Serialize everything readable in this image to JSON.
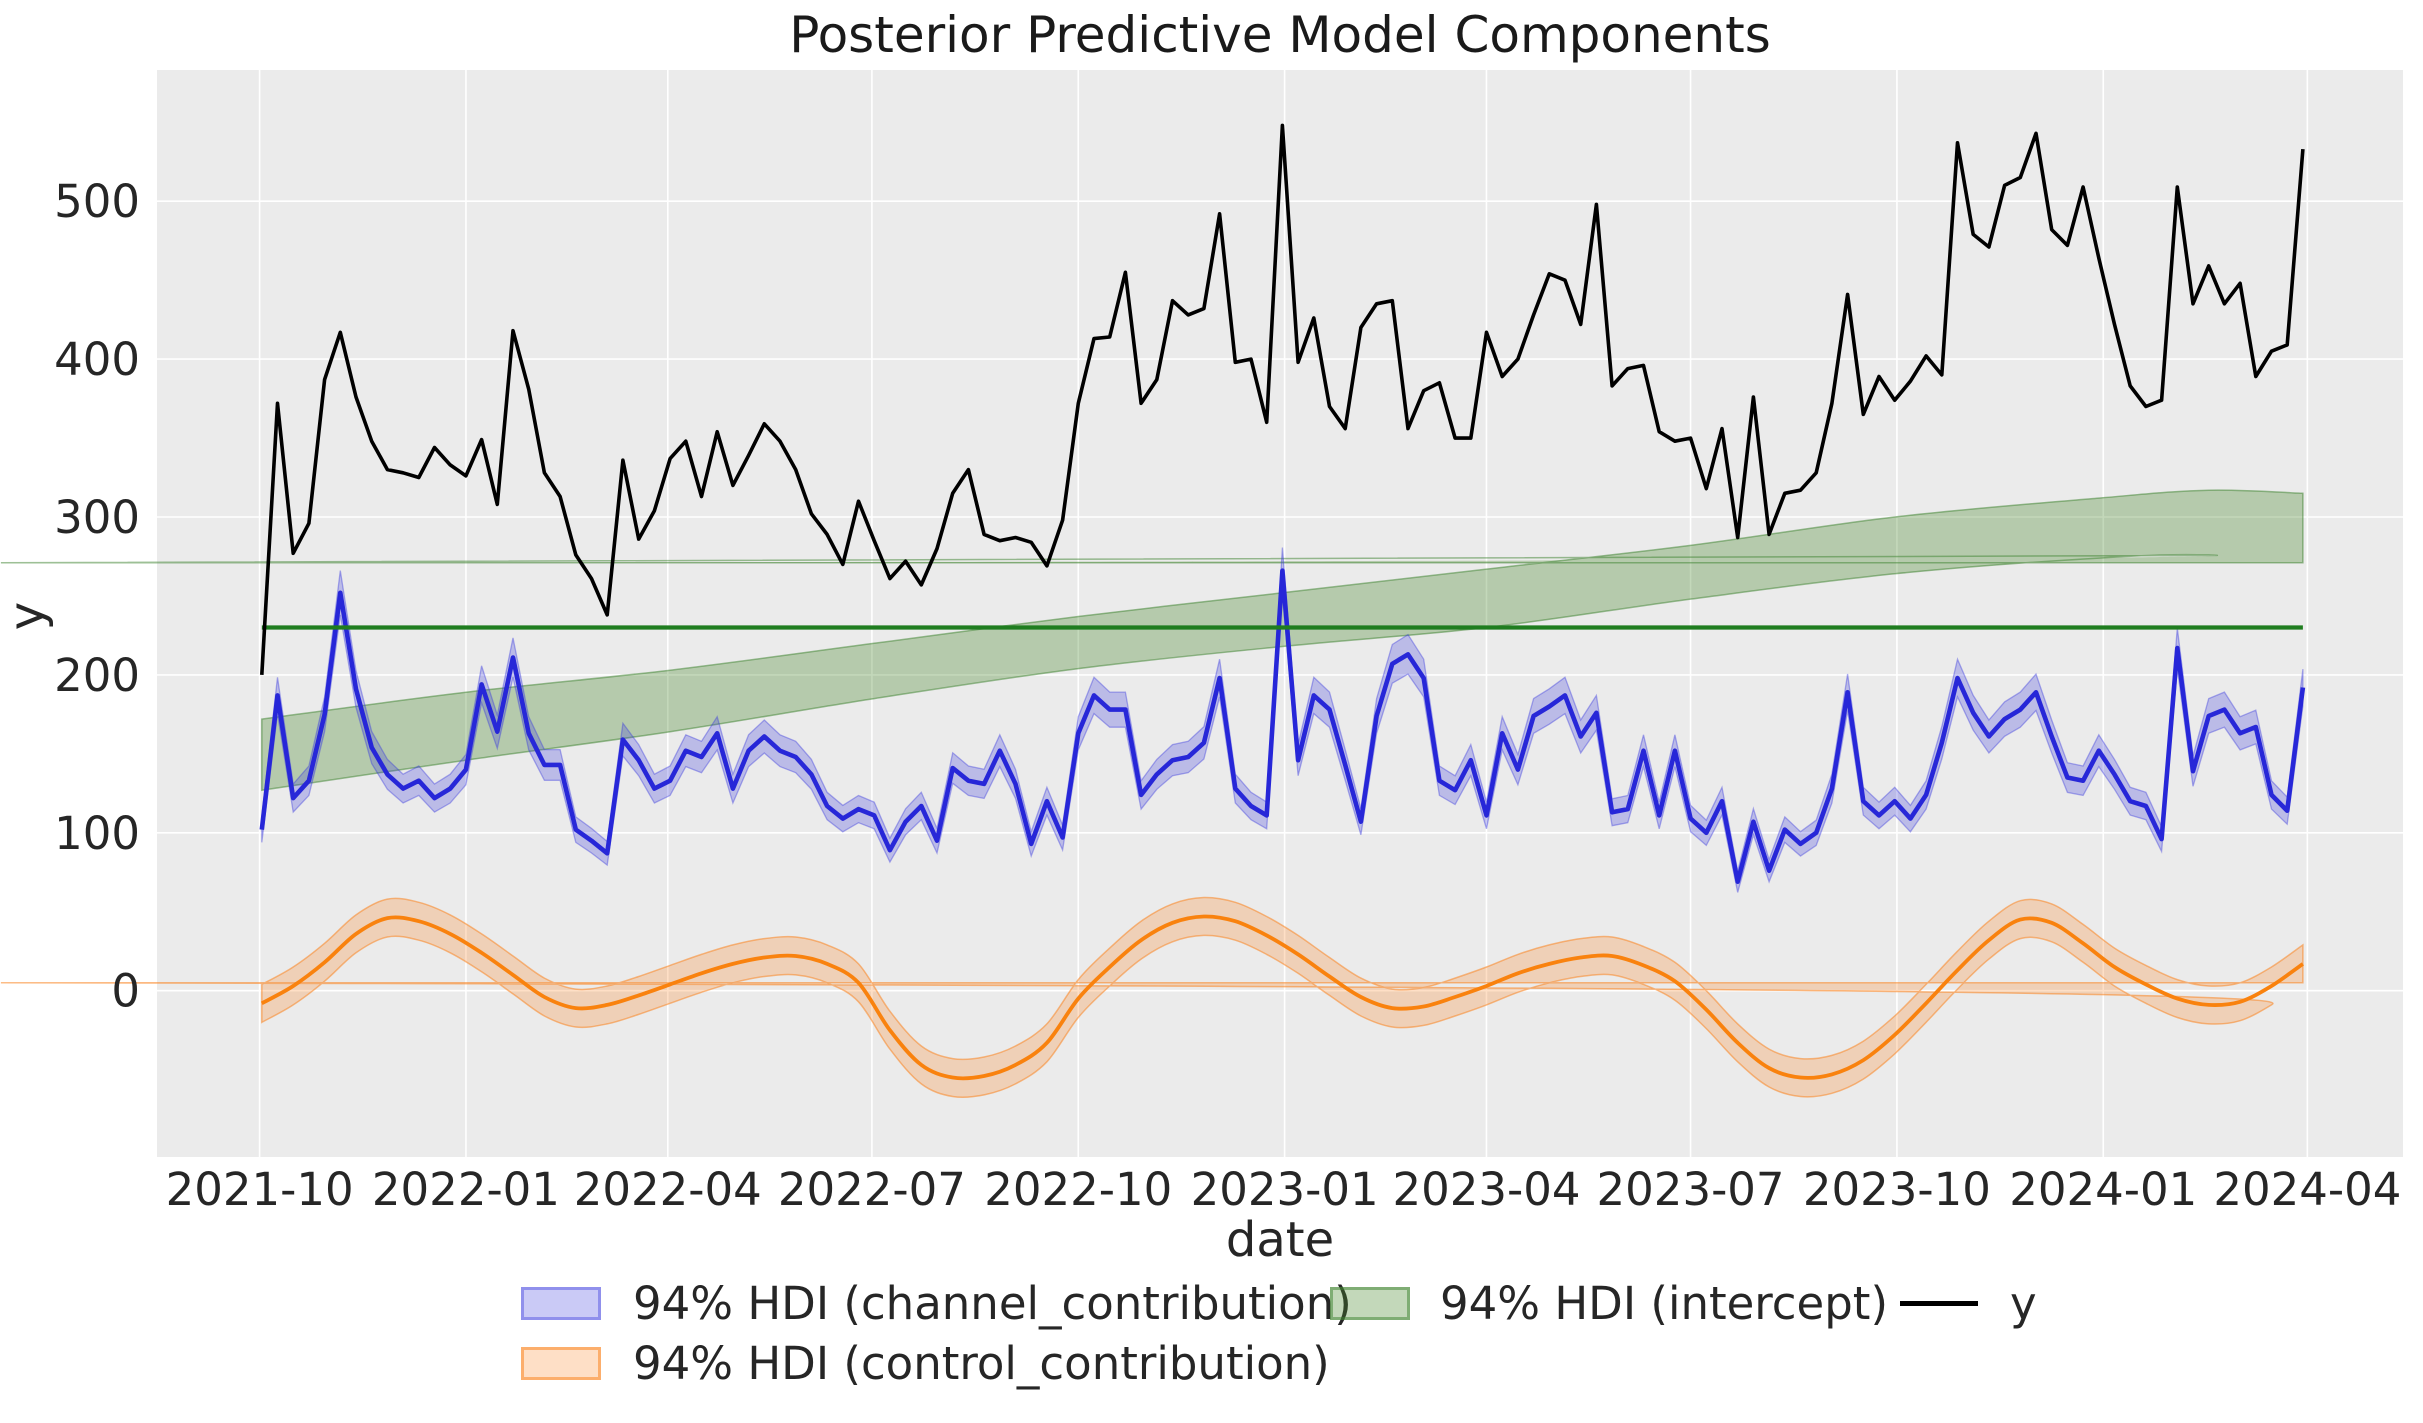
{
  "chart_data": {
    "type": "line",
    "title": "Posterior Predictive Model Components",
    "xlabel": "date",
    "ylabel": "y",
    "grid": true,
    "plot_background": "#ebebeb",
    "grid_color": "#ffffff",
    "text_color": "#262626",
    "ylim": [
      -105,
      583
    ],
    "yticks": [
      0,
      100,
      200,
      300,
      400,
      500
    ],
    "x_start_date": "2021-10-02",
    "x_step_days": 7,
    "x_tick_labels": [
      "2021-10",
      "2022-01",
      "2022-04",
      "2022-07",
      "2022-10",
      "2023-01",
      "2023-04",
      "2023-07",
      "2023-10",
      "2024-01",
      "2024-04"
    ],
    "x_tick_days": [
      0,
      92,
      182,
      273,
      365,
      457,
      547,
      638,
      730,
      822,
      913
    ],
    "legend": {
      "position": "below-axis",
      "items": [
        {
          "key": "channel",
          "label": "94% HDI (channel_contribution)",
          "swatch": "band",
          "color": "#2727d8"
        },
        {
          "key": "control",
          "label": "94% HDI (control_contribution)",
          "swatch": "band",
          "color": "#f9820e"
        },
        {
          "key": "intercept",
          "label": "94% HDI (intercept)",
          "swatch": "band",
          "color": "#3c8a2d"
        },
        {
          "key": "y",
          "label": "y",
          "swatch": "line",
          "color": "#000000"
        }
      ]
    },
    "series": [
      {
        "name": "y",
        "kind": "line",
        "color": "#000000",
        "line_width": 3.6,
        "values": [
          200,
          372,
          277,
          296,
          387,
          417,
          376,
          348,
          330,
          328,
          325,
          344,
          333,
          326,
          349,
          308,
          418,
          381,
          328,
          313,
          276,
          261,
          238,
          336,
          286,
          304,
          337,
          348,
          313,
          354,
          320,
          339,
          359,
          348,
          330,
          302,
          289,
          270,
          310,
          285,
          261,
          272,
          257,
          280,
          315,
          330,
          289,
          285,
          287,
          284,
          269,
          298,
          372,
          413,
          414,
          455,
          372,
          387,
          437,
          428,
          432,
          492,
          398,
          400,
          360,
          548,
          398,
          426,
          370,
          356,
          420,
          435,
          437,
          356,
          380,
          385,
          350,
          350,
          417,
          389,
          400,
          428,
          454,
          450,
          422,
          498,
          383,
          394,
          396,
          354,
          348,
          350,
          318,
          356,
          287,
          376,
          289,
          315,
          317,
          328,
          372,
          441,
          365,
          389,
          374,
          386,
          402,
          390,
          537,
          479,
          471,
          510,
          515,
          543,
          482,
          472,
          509,
          464,
          422,
          383,
          370,
          374,
          509,
          435,
          459,
          435,
          448,
          389,
          405,
          409,
          533
        ]
      },
      {
        "name": "channel_contribution",
        "kind": "line_with_hdi_band",
        "color": "#2727d8",
        "band_color": "rgba(58,58,222,0.27)",
        "band_edge_color": "rgba(58,58,222,0.40)",
        "line_width": 4.6,
        "hdi_halfwidth_base": 4,
        "hdi_halfwidth_scale": 0.04,
        "values": [
          102,
          187,
          122,
          133,
          175,
          252,
          191,
          154,
          137,
          128,
          133,
          122,
          128,
          140,
          194,
          164,
          211,
          163,
          143,
          143,
          102,
          95,
          87,
          159,
          146,
          128,
          133,
          152,
          148,
          163,
          128,
          152,
          161,
          152,
          148,
          137,
          117,
          109,
          115,
          111,
          89,
          107,
          117,
          95,
          141,
          133,
          131,
          152,
          131,
          93,
          120,
          97,
          163,
          187,
          178,
          178,
          124,
          137,
          146,
          148,
          157,
          198,
          128,
          117,
          111,
          266,
          146,
          187,
          178,
          143,
          107,
          174,
          207,
          213,
          198,
          133,
          127,
          146,
          111,
          163,
          140,
          174,
          180,
          187,
          161,
          176,
          113,
          115,
          152,
          111,
          152,
          109,
          100,
          120,
          69,
          107,
          76,
          102,
          93,
          100,
          128,
          189,
          120,
          111,
          120,
          109,
          124,
          157,
          198,
          176,
          161,
          172,
          178,
          189,
          161,
          135,
          133,
          152,
          137,
          120,
          117,
          96,
          217,
          139,
          174,
          178,
          163,
          167,
          124,
          114,
          192
        ]
      },
      {
        "name": "control_contribution",
        "kind": "smooth_line_with_hdi_band",
        "color": "#f9820e",
        "band_color": "rgba(250,133,35,0.26)",
        "band_edge_color": "rgba(250,133,35,0.55)",
        "line_width": 3.8,
        "hdi_halfwidth": 12,
        "anchors": [
          [
            0,
            -8
          ],
          [
            2,
            3
          ],
          [
            4,
            18
          ],
          [
            6,
            36
          ],
          [
            8,
            46
          ],
          [
            10,
            44
          ],
          [
            12,
            36
          ],
          [
            14,
            24
          ],
          [
            16,
            10
          ],
          [
            18,
            -4
          ],
          [
            20,
            -11
          ],
          [
            22,
            -9
          ],
          [
            24,
            -3
          ],
          [
            26,
            4
          ],
          [
            28,
            11
          ],
          [
            30,
            17
          ],
          [
            32,
            21
          ],
          [
            34,
            22
          ],
          [
            36,
            17
          ],
          [
            38,
            5
          ],
          [
            40,
            -25
          ],
          [
            42,
            -47
          ],
          [
            44,
            -55
          ],
          [
            46,
            -54
          ],
          [
            48,
            -47
          ],
          [
            50,
            -33
          ],
          [
            52,
            -5
          ],
          [
            54,
            15
          ],
          [
            56,
            32
          ],
          [
            58,
            43
          ],
          [
            60,
            47
          ],
          [
            62,
            44
          ],
          [
            64,
            35
          ],
          [
            66,
            23
          ],
          [
            68,
            9
          ],
          [
            70,
            -4
          ],
          [
            72,
            -11
          ],
          [
            74,
            -10
          ],
          [
            76,
            -4
          ],
          [
            78,
            3
          ],
          [
            80,
            11
          ],
          [
            82,
            17
          ],
          [
            84,
            21
          ],
          [
            86,
            22
          ],
          [
            88,
            16
          ],
          [
            90,
            6
          ],
          [
            92,
            -12
          ],
          [
            94,
            -33
          ],
          [
            96,
            -49
          ],
          [
            98,
            -55
          ],
          [
            100,
            -53
          ],
          [
            102,
            -44
          ],
          [
            104,
            -28
          ],
          [
            106,
            -8
          ],
          [
            108,
            13
          ],
          [
            110,
            32
          ],
          [
            112,
            45
          ],
          [
            114,
            43
          ],
          [
            116,
            30
          ],
          [
            118,
            15
          ],
          [
            120,
            4
          ],
          [
            122,
            -5
          ],
          [
            124,
            -9
          ],
          [
            126,
            -7
          ],
          [
            128,
            3
          ],
          [
            130,
            17
          ]
        ]
      },
      {
        "name": "intercept",
        "kind": "hdi_band_only",
        "band_color": "rgba(72,138,45,0.33)",
        "band_edge_color": "rgba(60,130,45,0.50)",
        "anchors": [
          [
            0,
            172,
            127
          ],
          [
            13,
            189,
            146
          ],
          [
            26,
            203,
            164
          ],
          [
            39,
            220,
            185
          ],
          [
            52,
            237,
            204
          ],
          [
            65,
            252,
            218
          ],
          [
            78,
            267,
            230
          ],
          [
            91,
            282,
            248
          ],
          [
            104,
            300,
            264
          ],
          [
            117,
            312,
            274
          ],
          [
            124,
            317,
            276
          ],
          [
            130,
            315,
            271
          ]
        ]
      },
      {
        "name": "intercept_reference_line",
        "kind": "hline",
        "color": "#1f7d1f",
        "line_width": 4.2,
        "value": 230
      }
    ]
  }
}
